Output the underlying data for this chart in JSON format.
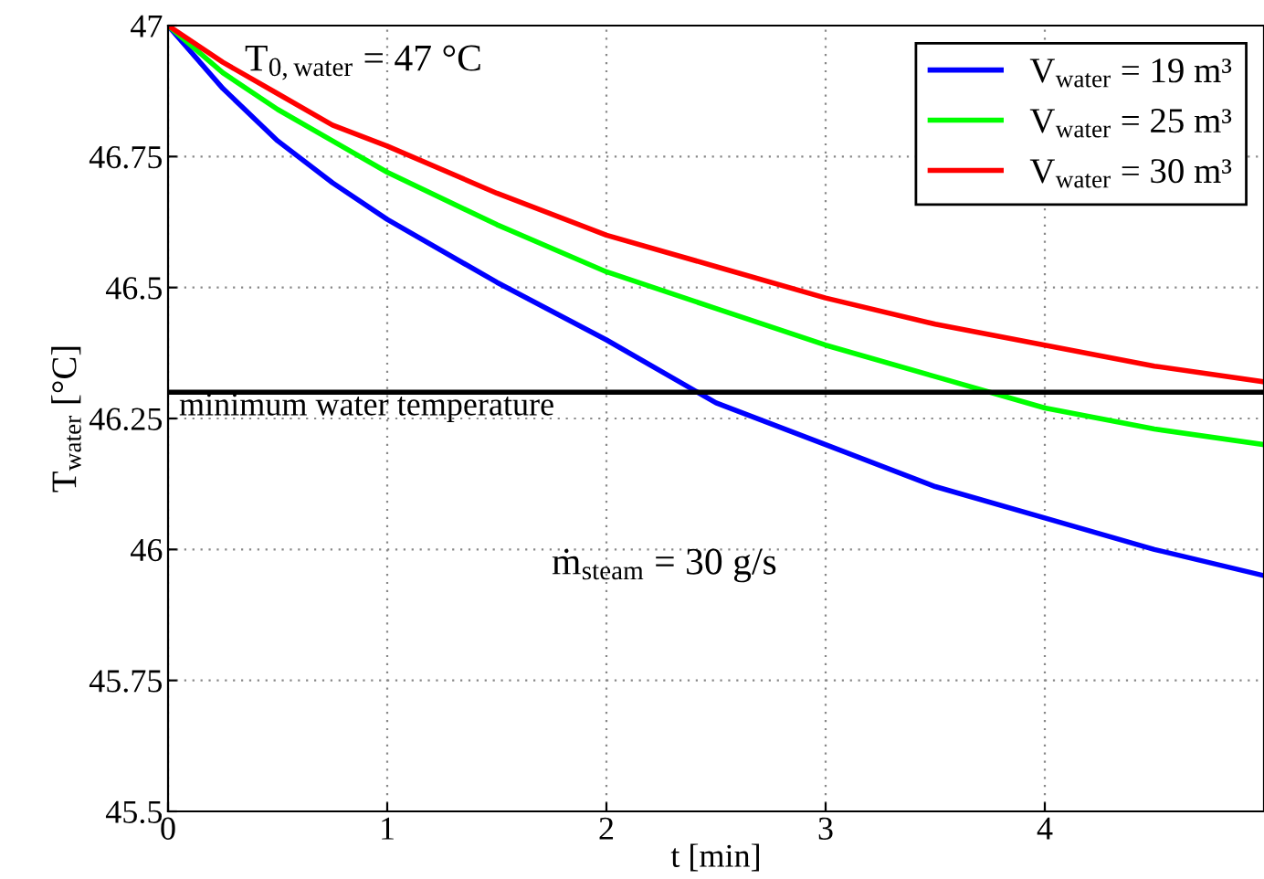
{
  "chart_data": {
    "type": "line",
    "xlabel": "t [min]",
    "ylabel": "T$_{water}$ [°C]",
    "x": [
      0,
      0.25,
      0.5,
      0.75,
      1,
      1.5,
      2,
      2.5,
      3,
      3.5,
      4,
      4.5,
      5
    ],
    "series": [
      {
        "name": "V$_{water}$ = 19 m³",
        "color": "#0000ff",
        "values": [
          47,
          46.88,
          46.78,
          46.7,
          46.63,
          46.51,
          46.4,
          46.28,
          46.2,
          46.12,
          46.06,
          46.0,
          45.95
        ]
      },
      {
        "name": "V$_{water}$ = 25 m³",
        "color": "#00ff00",
        "values": [
          47,
          46.91,
          46.84,
          46.78,
          46.72,
          46.62,
          46.53,
          46.46,
          46.39,
          46.33,
          46.27,
          46.23,
          46.2
        ]
      },
      {
        "name": "V$_{water}$ = 30 m³",
        "color": "#ff0000",
        "values": [
          47,
          46.93,
          46.87,
          46.81,
          46.77,
          46.68,
          46.6,
          46.54,
          46.48,
          46.43,
          46.39,
          46.35,
          46.32
        ]
      }
    ],
    "xlim": [
      0,
      5
    ],
    "xticks": [
      0,
      1,
      2,
      3,
      4
    ],
    "ylim": [
      45.5,
      47
    ],
    "yticks": [
      45.5,
      45.75,
      46,
      46.25,
      46.5,
      46.75,
      47
    ],
    "ref_lines": [
      {
        "axis": "y",
        "value": 46.3,
        "label": "minimum water temperature",
        "color": "#000000"
      }
    ],
    "annotations": [
      "T$_{0,water}$ = 47 °C",
      "ṁ$_{steam}$ = 30 g/s"
    ],
    "grid": true,
    "legend": "top right",
    "line_style": "solid",
    "marker": "none"
  }
}
